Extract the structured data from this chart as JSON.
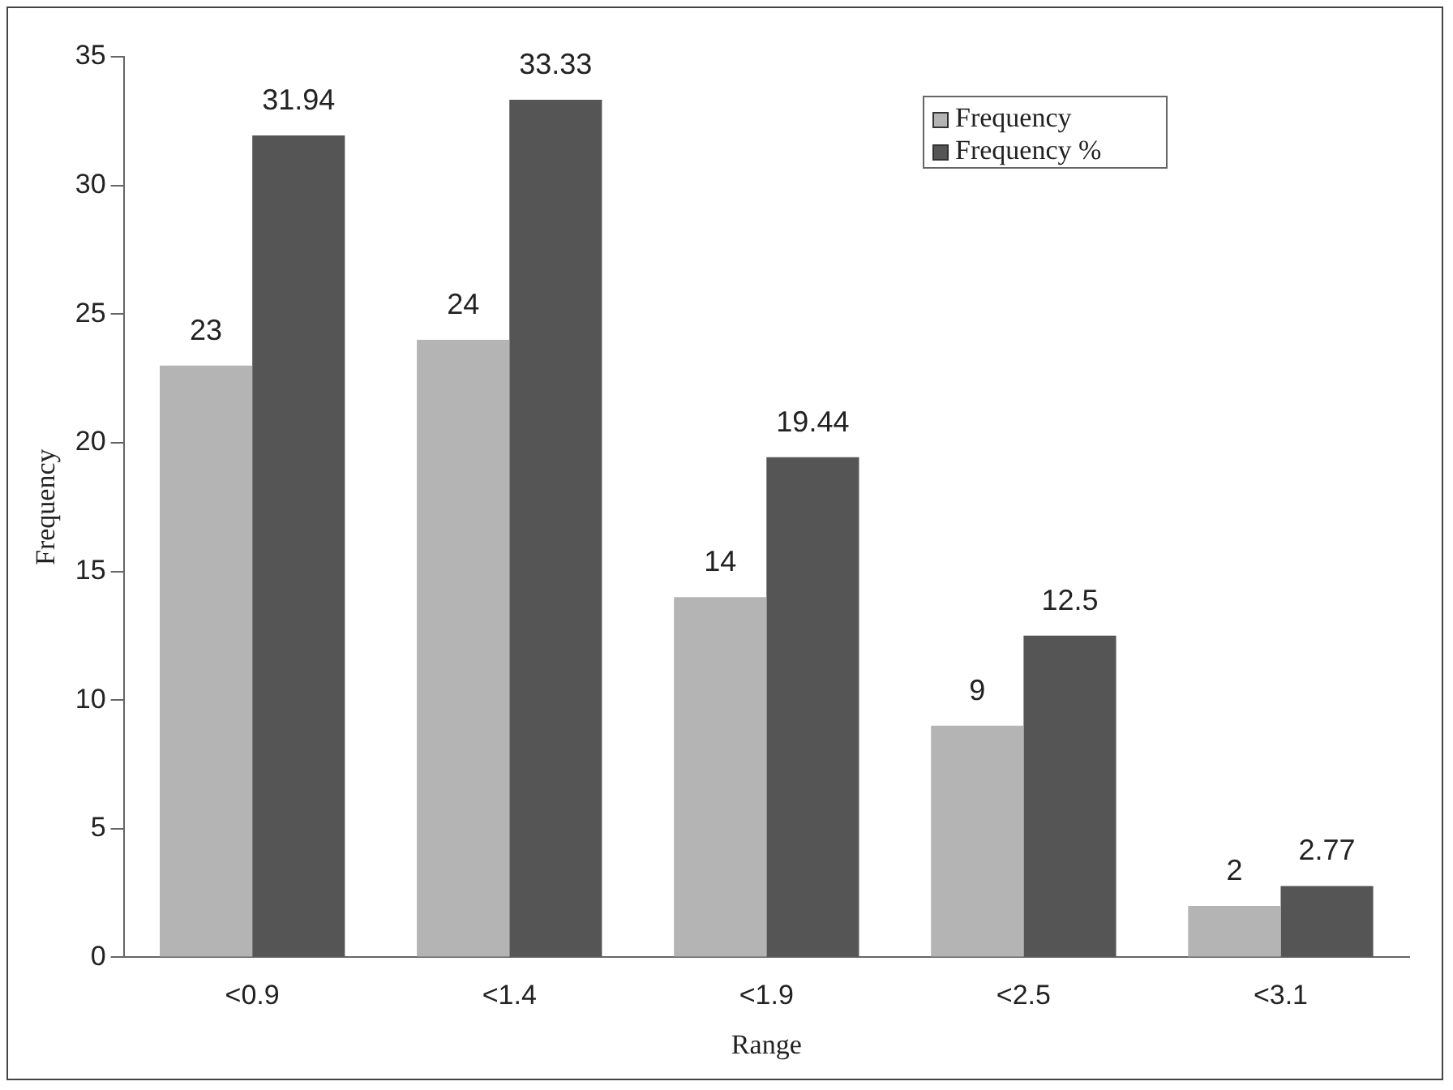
{
  "chart_data": {
    "type": "bar",
    "xlabel": "Range",
    "ylabel": "Frequency",
    "categories": [
      "<0.9",
      "<1.4",
      "<1.9",
      "<2.5",
      "<3.1"
    ],
    "series": [
      {
        "name": "Frequency",
        "color": "#b4b4b4",
        "values": [
          23,
          24,
          14,
          9,
          2
        ]
      },
      {
        "name": "Frequency %",
        "color": "#555555",
        "values": [
          31.94,
          33.33,
          19.44,
          12.5,
          2.77
        ]
      }
    ],
    "ylim": [
      0,
      35
    ],
    "yticks": [
      0,
      5,
      10,
      15,
      20,
      25,
      30,
      35
    ],
    "grid": false,
    "legend": "top right",
    "data_labels": true
  }
}
